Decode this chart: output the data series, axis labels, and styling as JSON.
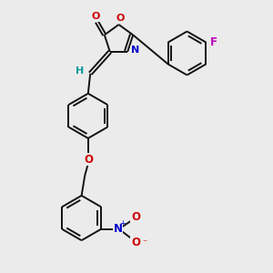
{
  "bg_color": "#ebebeb",
  "bond_color": "#111111",
  "O_color": "#cc0000",
  "N_color": "#0000cc",
  "F_color": "#bb00bb",
  "H_color": "#009999",
  "bw": 1.4,
  "dpi": 100,
  "fw": 3.0,
  "fh": 3.0,
  "xlim": [
    0,
    10
  ],
  "ylim": [
    0,
    10
  ]
}
